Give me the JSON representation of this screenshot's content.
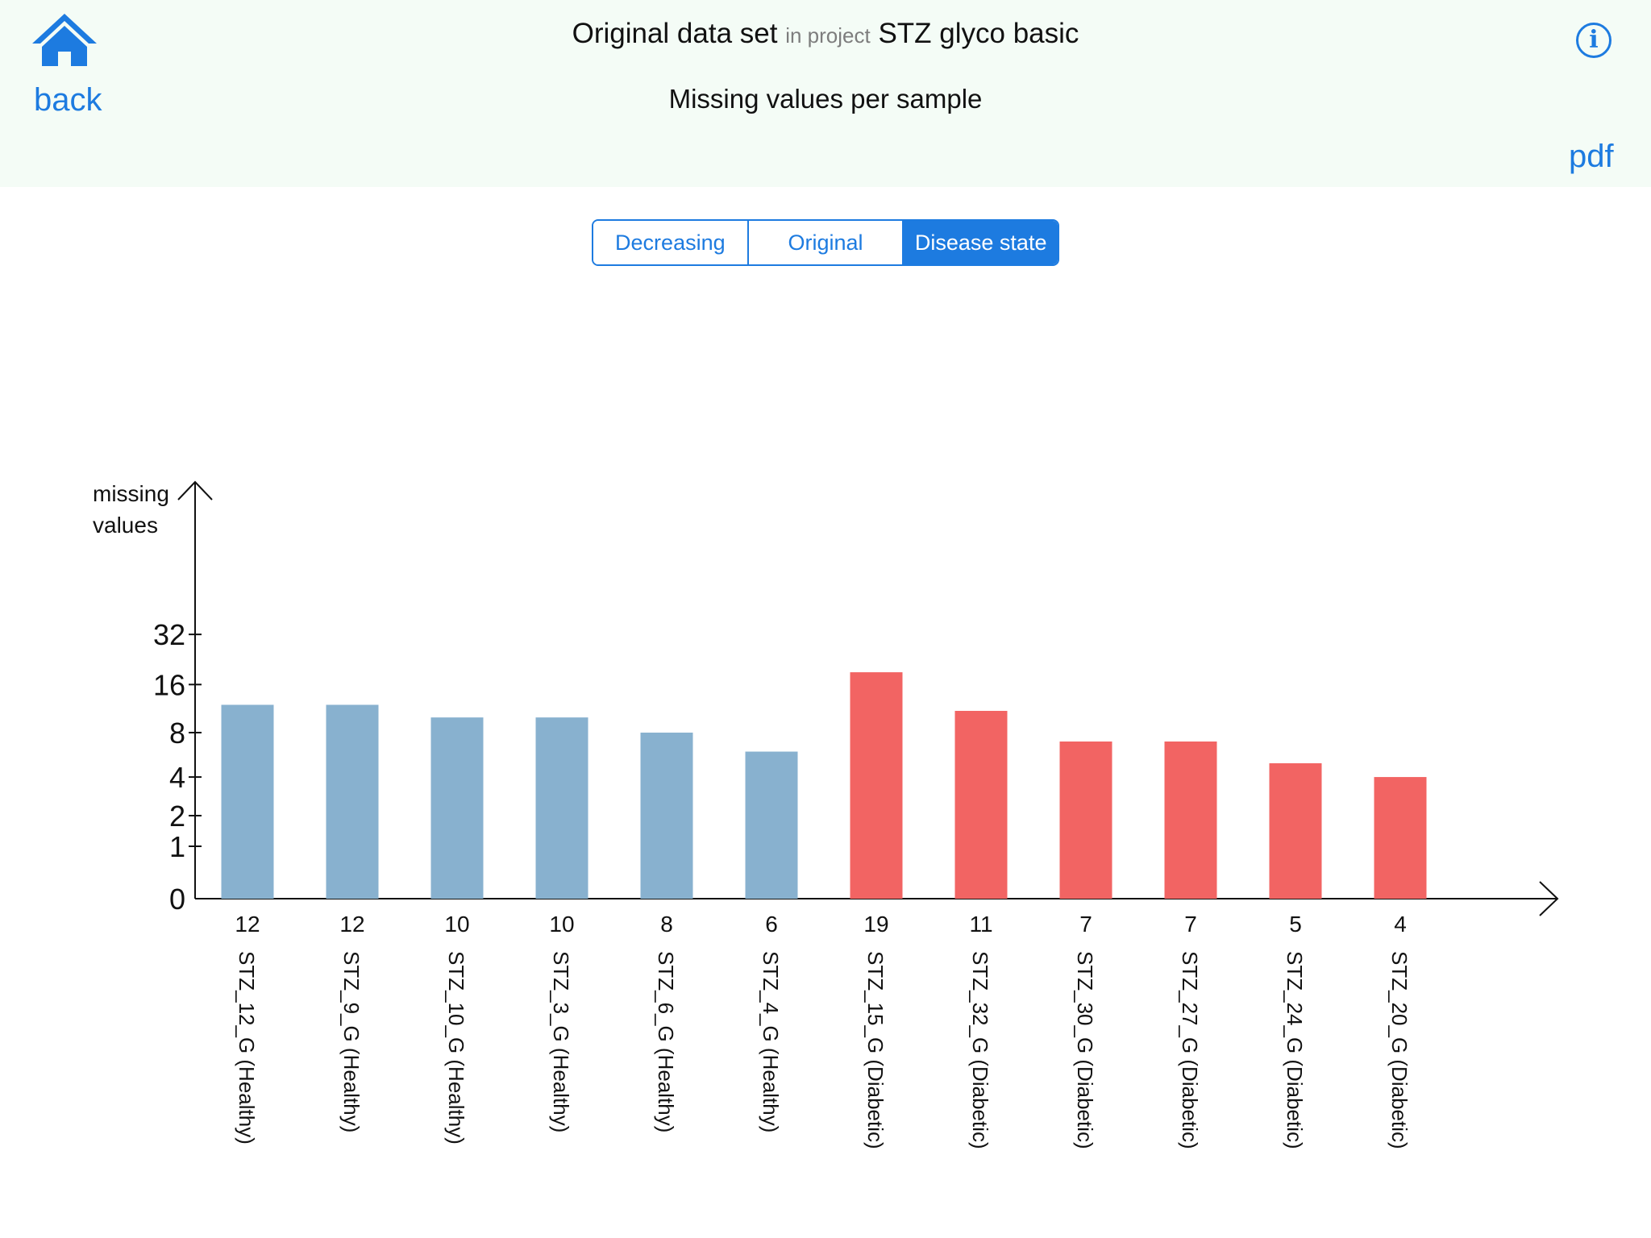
{
  "header": {
    "back_label": "back",
    "title_dataset": "Original data set",
    "title_connector": "in project",
    "title_project": "STZ glyco basic",
    "subtitle": "Missing values per sample",
    "info_symbol": "i",
    "pdf_label": "pdf",
    "accent_color": "#1d7be0",
    "background_color": "#f4fcf6"
  },
  "sort_control": {
    "options": [
      "Decreasing",
      "Original",
      "Disease state"
    ],
    "selected": "Disease state"
  },
  "chart_data": {
    "type": "bar",
    "title": "",
    "ylabel": "missing values",
    "ylabel_lines": [
      "missing",
      "values"
    ],
    "xlabel": "",
    "y_scale": "log2(x+1)",
    "y_ticks": [
      0,
      1,
      2,
      4,
      8,
      16,
      32
    ],
    "ylim": [
      0,
      32
    ],
    "grid": false,
    "colors": {
      "Healthy": "#88b1cf",
      "Diabetic": "#f26463"
    },
    "categories": [
      {
        "sample": "STZ_12_G",
        "group": "Healthy",
        "value": 12
      },
      {
        "sample": "STZ_9_G",
        "group": "Healthy",
        "value": 12
      },
      {
        "sample": "STZ_10_G",
        "group": "Healthy",
        "value": 10
      },
      {
        "sample": "STZ_3_G",
        "group": "Healthy",
        "value": 10
      },
      {
        "sample": "STZ_6_G",
        "group": "Healthy",
        "value": 8
      },
      {
        "sample": "STZ_4_G",
        "group": "Healthy",
        "value": 6
      },
      {
        "sample": "STZ_15_G",
        "group": "Diabetic",
        "value": 19
      },
      {
        "sample": "STZ_32_G",
        "group": "Diabetic",
        "value": 11
      },
      {
        "sample": "STZ_30_G",
        "group": "Diabetic",
        "value": 7
      },
      {
        "sample": "STZ_27_G",
        "group": "Diabetic",
        "value": 7
      },
      {
        "sample": "STZ_24_G",
        "group": "Diabetic",
        "value": 5
      },
      {
        "sample": "STZ_20_G",
        "group": "Diabetic",
        "value": 4
      }
    ]
  }
}
